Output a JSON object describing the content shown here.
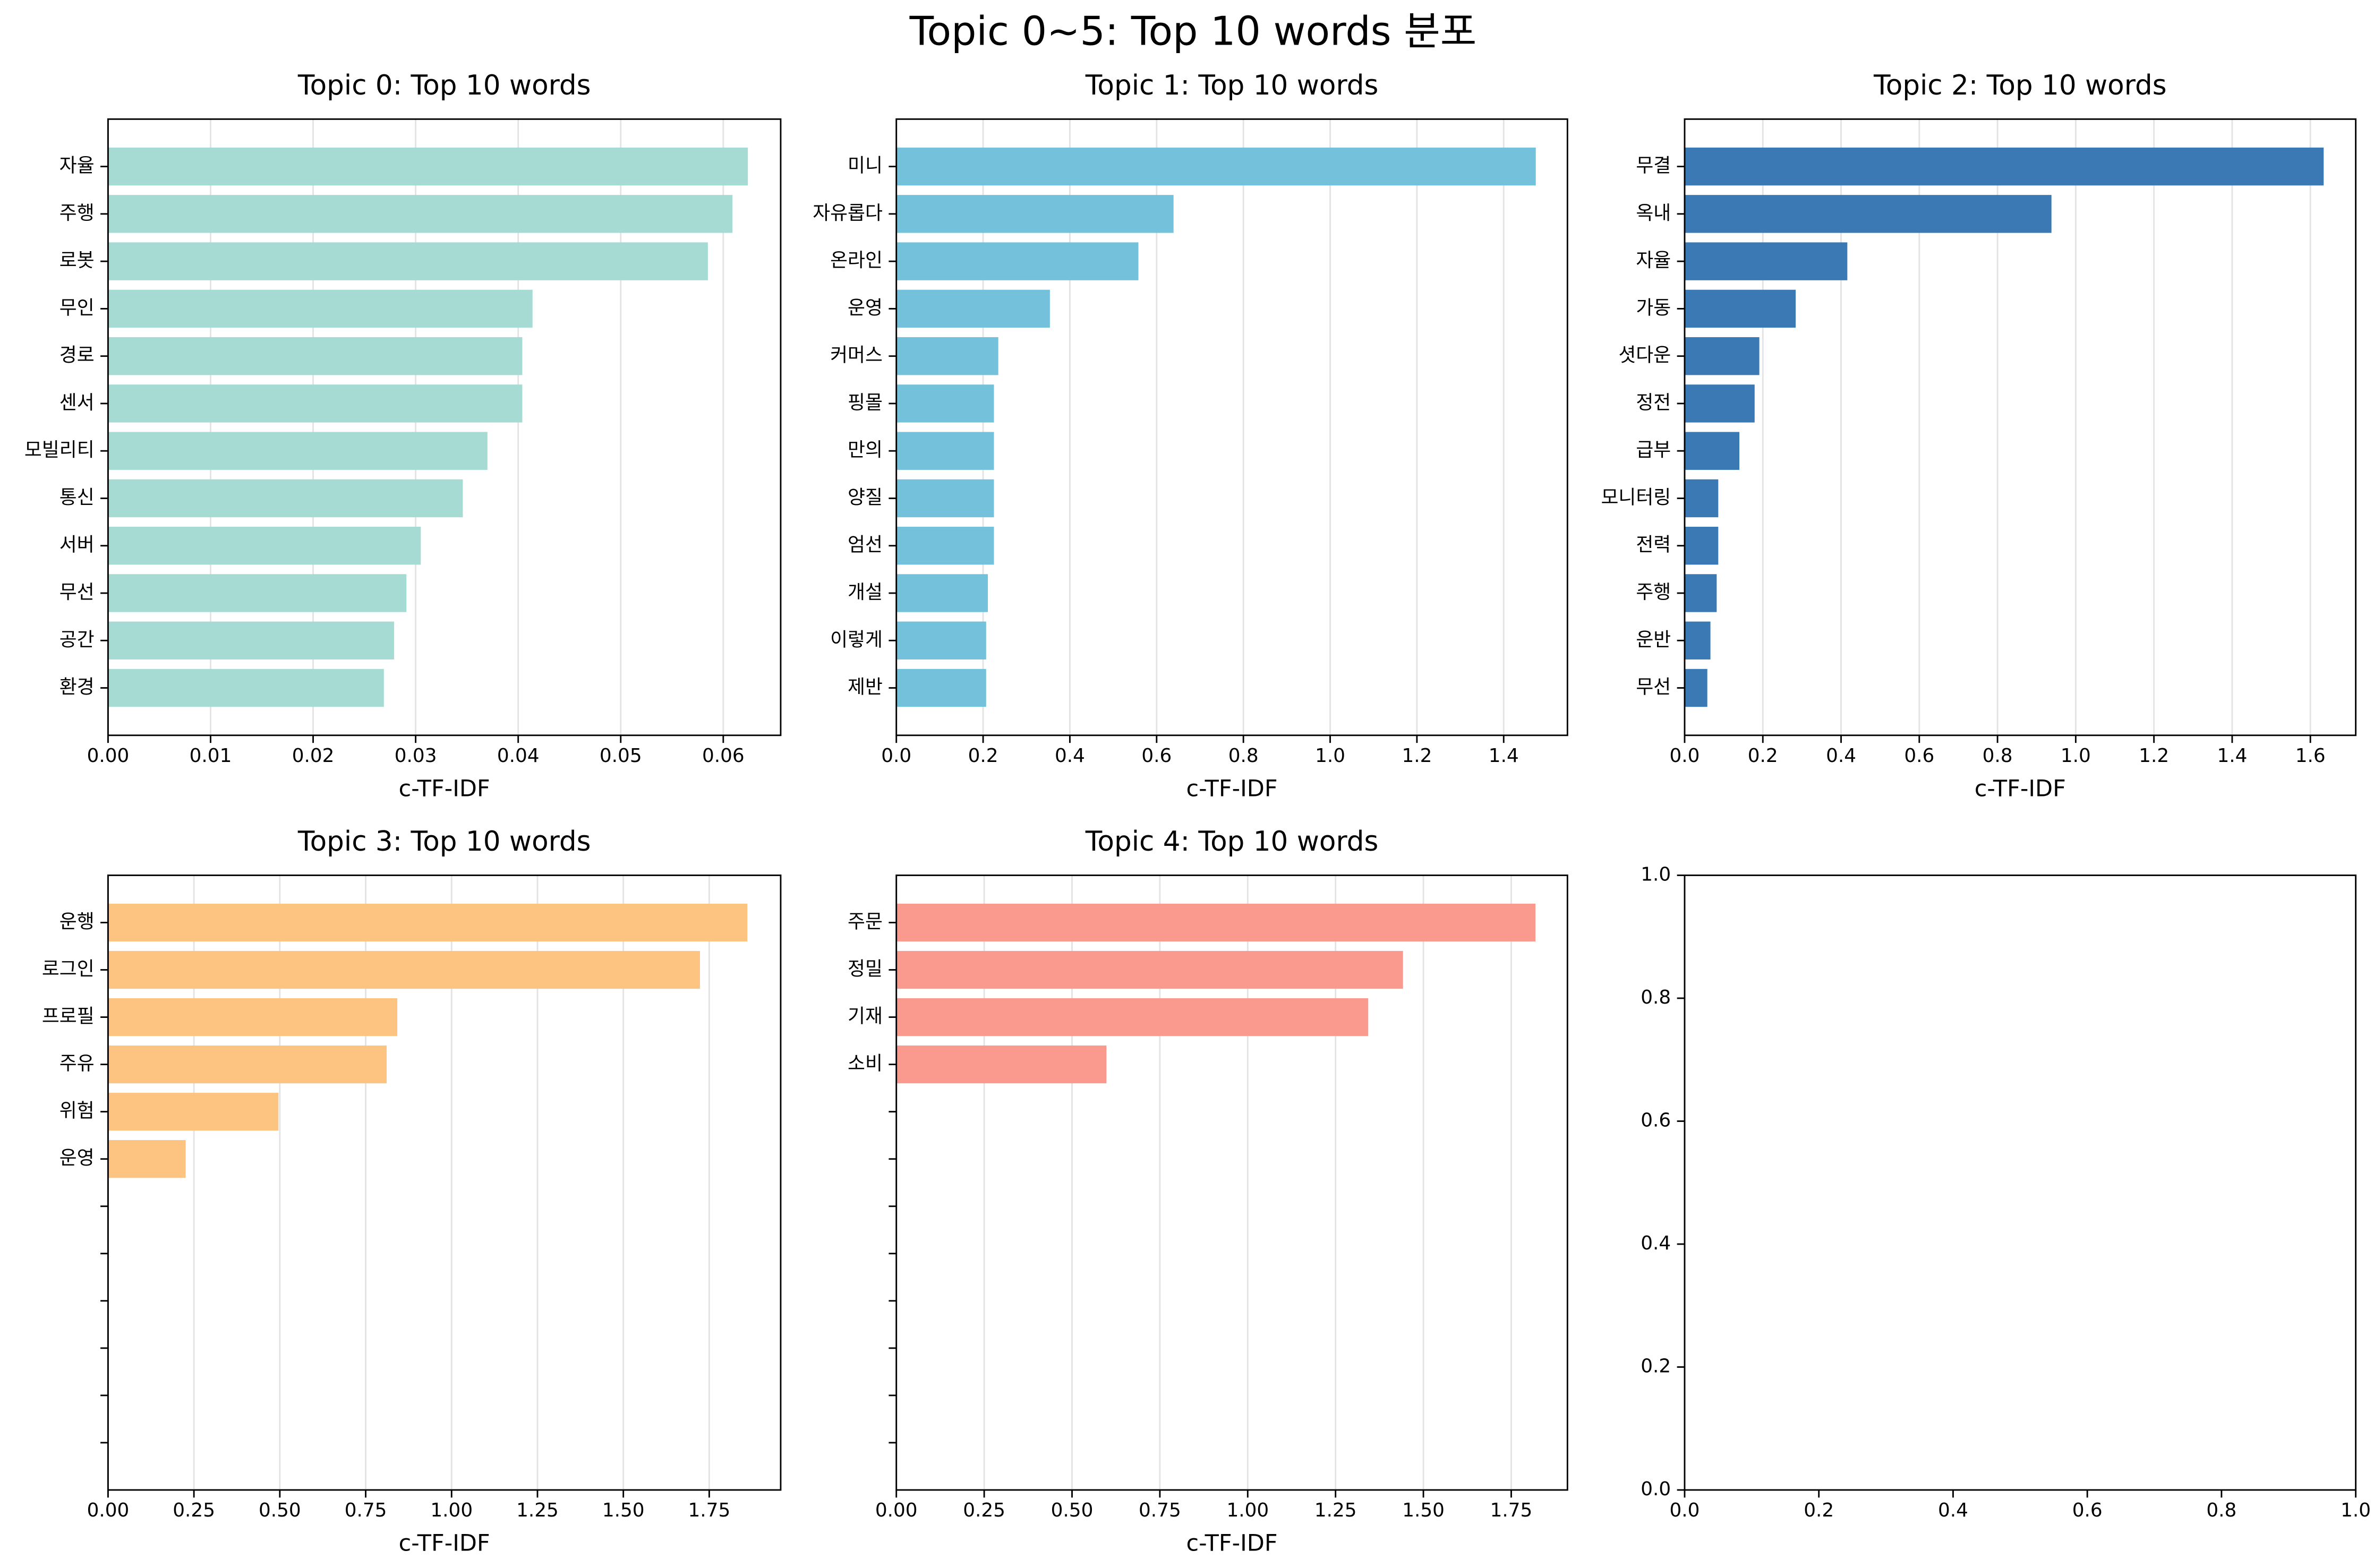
{
  "title": "Topic 0~5: Top 10 words 분포",
  "chart_data": [
    {
      "type": "barh",
      "title": "Topic 0: Top 10 words",
      "xlabel": "c-TF-IDF",
      "color": "#a5dbd3",
      "grid": true,
      "categories": [
        "자율",
        "주행",
        "로봇",
        "무인",
        "경로",
        "센서",
        "모빌리티",
        "통신",
        "서버",
        "무선",
        "공간",
        "환경"
      ],
      "values": [
        0.0624,
        0.0609,
        0.0585,
        0.0414,
        0.0404,
        0.0404,
        0.037,
        0.0346,
        0.0305,
        0.0291,
        0.0279,
        0.0269
      ],
      "xlim": [
        0,
        0.0656
      ],
      "xticks": [
        {
          "value": 0,
          "label": "0.00"
        },
        0.01,
        0.02,
        0.03,
        0.04,
        0.05,
        0.06
      ]
    },
    {
      "type": "barh",
      "title": "Topic 1: Top 10 words",
      "xlabel": "c-TF-IDF",
      "color": "#74c1db",
      "grid": true,
      "categories": [
        "미니",
        "자유롭다",
        "온라인",
        "운영",
        "커머스",
        "핑몰",
        "만의",
        "양질",
        "엄선",
        "개설",
        "이렇게",
        "제반"
      ],
      "values": [
        1.474,
        0.639,
        0.558,
        0.354,
        0.235,
        0.225,
        0.225,
        0.225,
        0.225,
        0.211,
        0.207,
        0.207
      ],
      "xlim": [
        0,
        1.547
      ],
      "xticks": [
        {
          "value": 0,
          "label": "0.0"
        },
        0.2,
        0.4,
        0.6,
        0.8,
        {
          "value": 1,
          "label": "1.0"
        },
        1.2,
        1.4
      ]
    },
    {
      "type": "barh",
      "title": "Topic 2: Top 10 words",
      "xlabel": "c-TF-IDF",
      "color": "#3b79b4",
      "grid": true,
      "categories": [
        "무결",
        "옥내",
        "자율",
        "가동",
        "셧다운",
        "정전",
        "급부",
        "모니터링",
        "전력",
        "주행",
        "운반",
        "무선"
      ],
      "values": [
        1.634,
        0.938,
        0.416,
        0.284,
        0.191,
        0.179,
        0.14,
        0.086,
        0.086,
        0.082,
        0.066,
        0.058
      ],
      "xlim": [
        0,
        1.716
      ],
      "xticks": [
        {
          "value": 0,
          "label": "0.0"
        },
        0.2,
        0.4,
        0.6,
        0.8,
        {
          "value": 1,
          "label": "1.0"
        },
        1.2,
        1.4,
        1.6
      ]
    },
    {
      "type": "barh",
      "title": "Topic 3: Top 10 words",
      "xlabel": "c-TF-IDF",
      "color": "#fdc381",
      "grid": true,
      "categories": [
        "운행",
        "로그인",
        "프로필",
        "주유",
        "위험",
        "운영",
        null,
        null,
        null,
        null,
        null,
        null
      ],
      "values": [
        1.861,
        1.723,
        0.842,
        0.811,
        0.496,
        0.226,
        null,
        null,
        null,
        null,
        null,
        null
      ],
      "xlim": [
        0,
        1.958
      ],
      "xticks": [
        {
          "value": 0,
          "label": "0.00"
        },
        0.25,
        {
          "value": 0.5,
          "label": "0.50"
        },
        0.75,
        {
          "value": 1,
          "label": "1.00"
        },
        1.25,
        {
          "value": 1.5,
          "label": "1.50"
        },
        1.75
      ]
    },
    {
      "type": "barh",
      "title": "Topic 4: Top 10 words",
      "xlabel": "c-TF-IDF",
      "color": "#fa9a8f",
      "grid": true,
      "categories": [
        "주문",
        "정밀",
        "기재",
        "소비",
        null,
        null,
        null,
        null,
        null,
        null,
        null,
        null
      ],
      "values": [
        1.819,
        1.442,
        1.343,
        0.598,
        null,
        null,
        null,
        null,
        null,
        null,
        null,
        null
      ],
      "xlim": [
        0,
        1.91
      ],
      "xticks": [
        {
          "value": 0,
          "label": "0.00"
        },
        0.25,
        {
          "value": 0.5,
          "label": "0.50"
        },
        0.75,
        {
          "value": 1,
          "label": "1.00"
        },
        1.25,
        {
          "value": 1.5,
          "label": "1.50"
        },
        1.75
      ]
    },
    {
      "type": "empty",
      "grid": false,
      "xlim": [
        0,
        1
      ],
      "ylim": [
        0,
        1
      ],
      "xticks": [
        {
          "value": 0,
          "label": "0.0"
        },
        0.2,
        0.4,
        0.6,
        0.8,
        {
          "value": 1,
          "label": "1.0"
        }
      ],
      "yticks": [
        {
          "value": 0,
          "label": "0.0"
        },
        0.2,
        0.4,
        0.6,
        0.8,
        {
          "value": 1,
          "label": "1.0"
        }
      ]
    }
  ]
}
